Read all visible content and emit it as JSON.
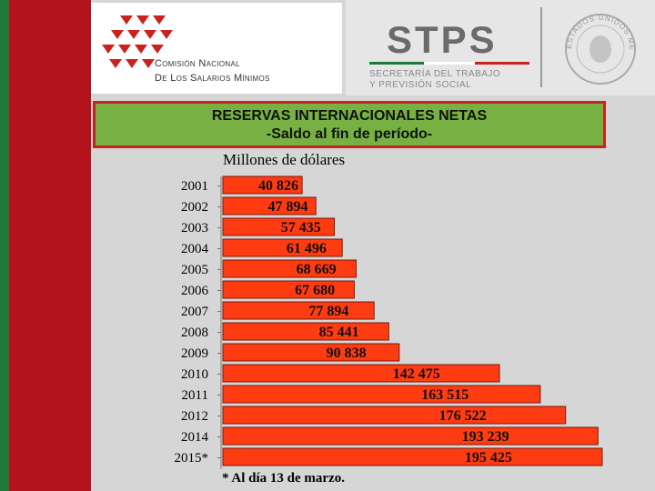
{
  "header": {
    "org_line1": "Comisión Nacional",
    "org_line2": "De Los Salarios Mínimos",
    "stps_title": "STPS",
    "stps_line1": "SECRETARÍA DEL TRABAJO",
    "stps_line2": "Y PREVISIÓN SOCIAL",
    "seal_text": "ESTADOS UNIDOS MEXICANOS"
  },
  "colors": {
    "bar": "#ff3b12",
    "bar_edge": "#7a1a0a",
    "title_bg": "#77b043",
    "title_border": "#c8231e"
  },
  "chart_data": {
    "type": "bar",
    "orientation": "horizontal",
    "title": "RESERVAS INTERNACIONALES NETAS",
    "subtitle": "-Saldo al fin de período-",
    "unit_label": "Millones de dólares",
    "categories": [
      "2001",
      "2002",
      "2003",
      "2004",
      "2005",
      "2006",
      "2007",
      "2008",
      "2009",
      "2010",
      "2011",
      "2012",
      "2014",
      "2015*"
    ],
    "values": [
      40826,
      47894,
      57435,
      61496,
      68669,
      67680,
      77894,
      85441,
      90838,
      142475,
      163515,
      176522,
      193239,
      195425
    ],
    "value_labels": [
      "40 826",
      "47 894",
      "57 435",
      "61 496",
      "68 669",
      "67 680",
      "77 894",
      "85 441",
      "90 838",
      "142 475",
      "163 515",
      "176 522",
      "193 239",
      "195 425"
    ],
    "footnote": "* Al día 13 de marzo."
  }
}
